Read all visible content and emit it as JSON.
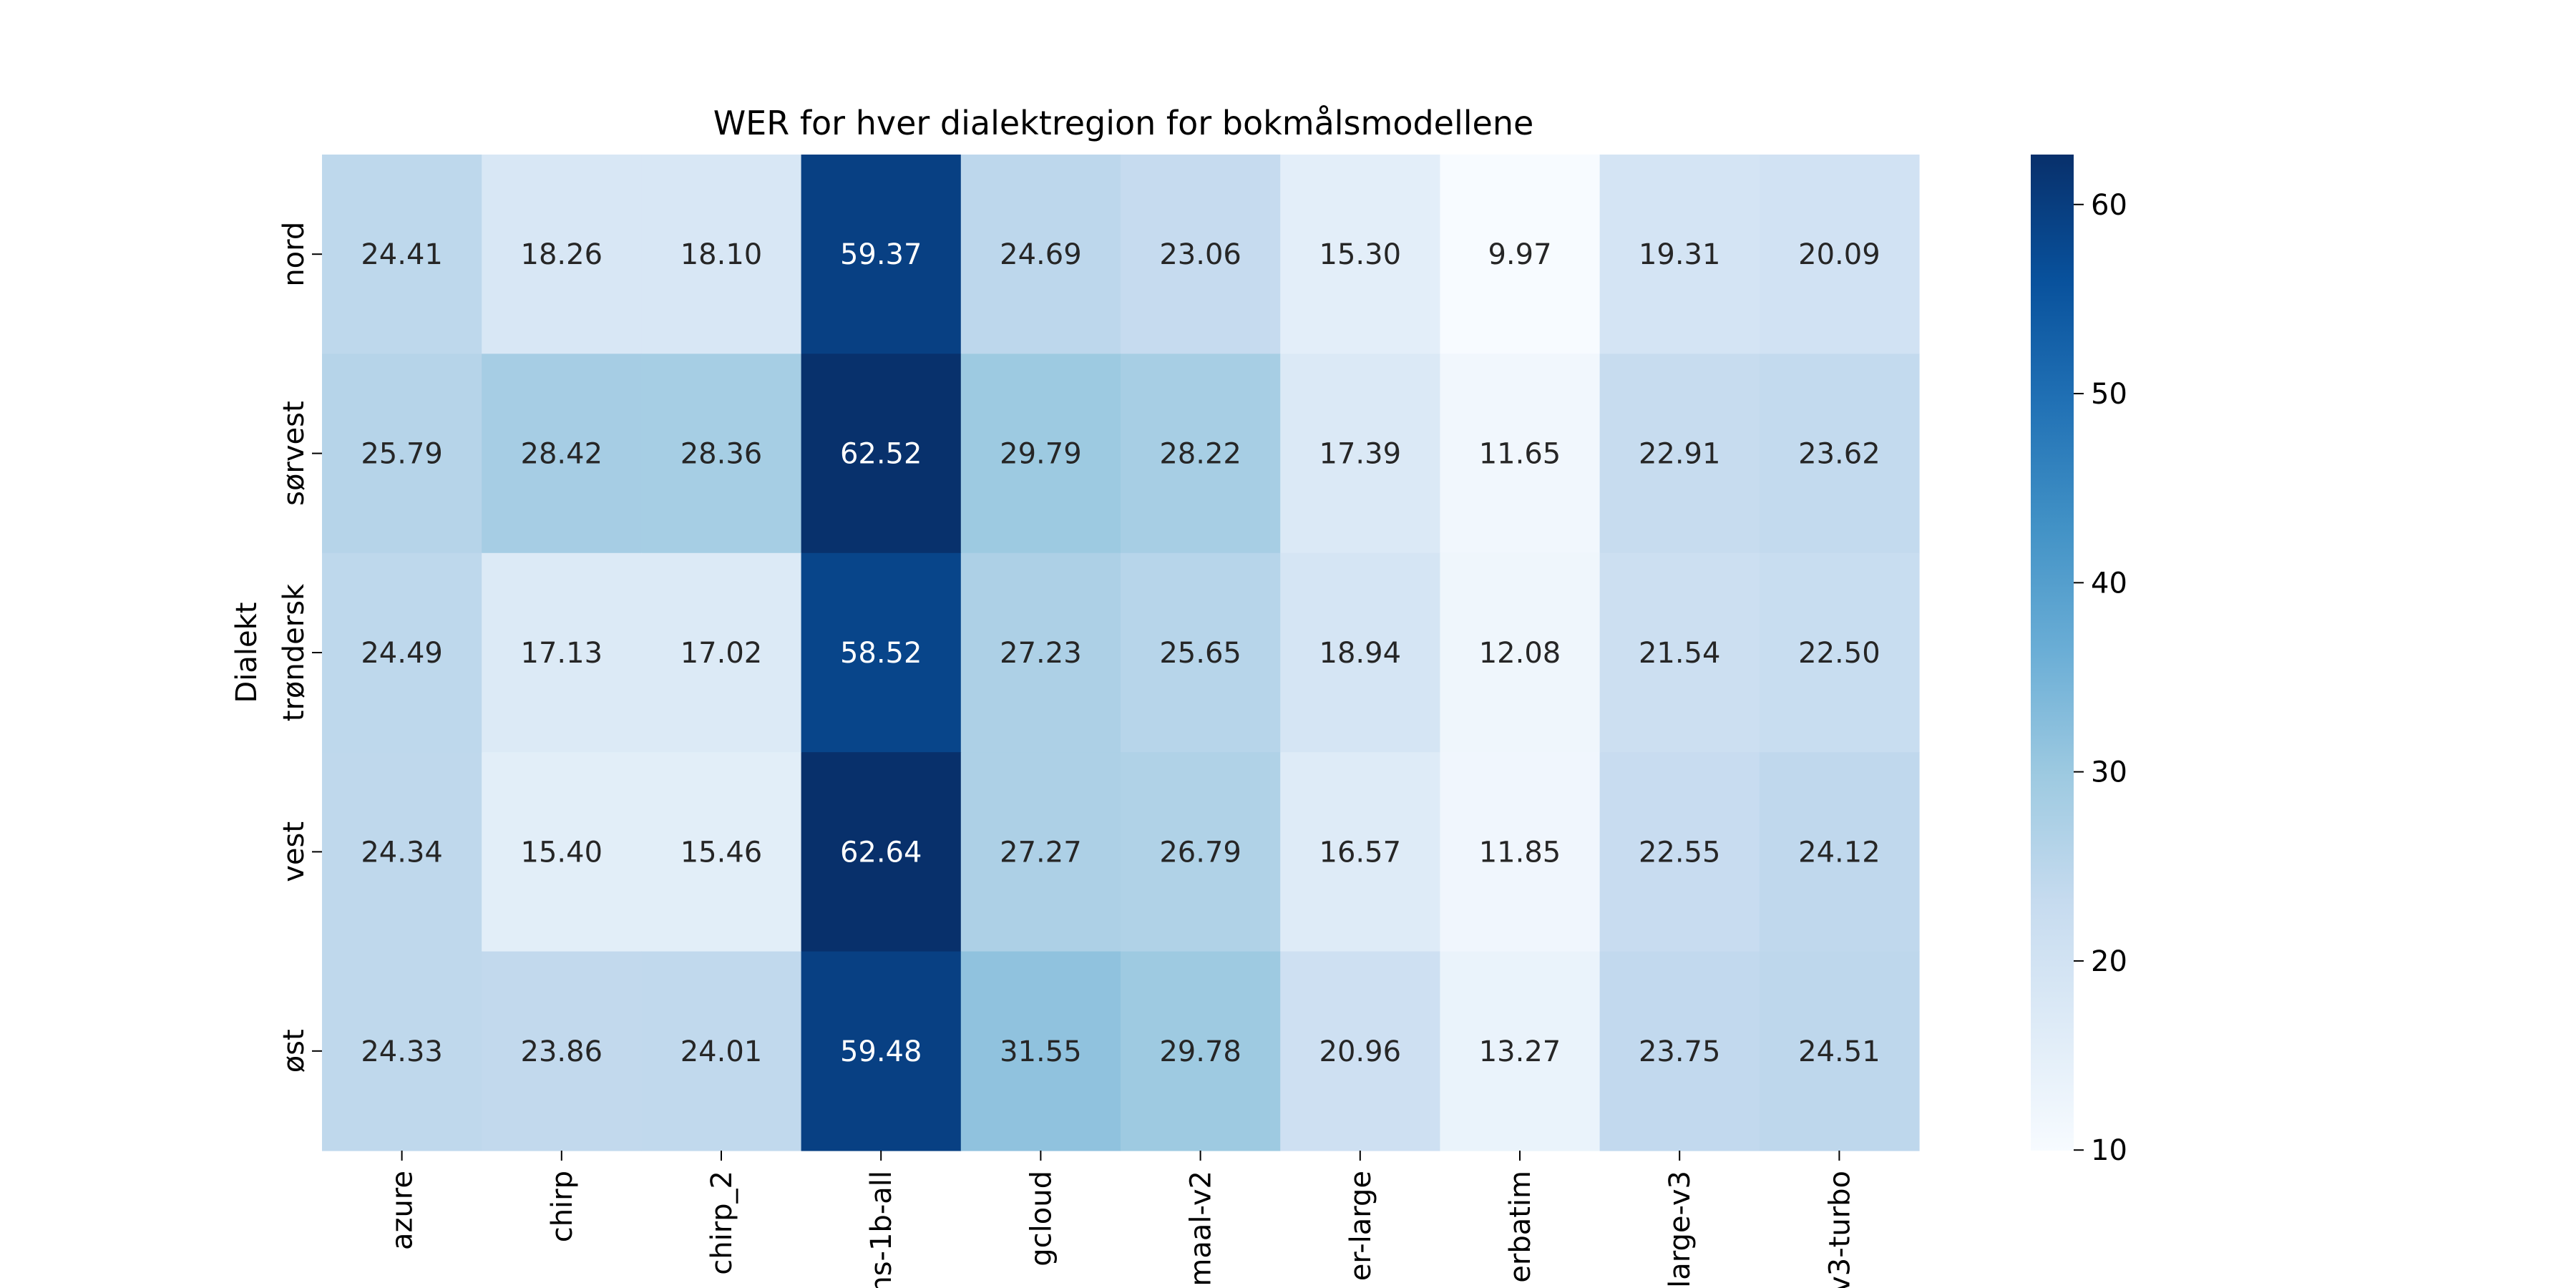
{
  "chart_data": {
    "type": "heatmap",
    "title": "WER for hver dialektregion for bokmålsmodellene",
    "ylabel": "Dialekt",
    "xlabel": "",
    "x_categories": [
      "azure",
      "chirp",
      "chirp_2",
      "ns-1b-all",
      "gcloud",
      "maal-v2",
      "er-large",
      "erbatim",
      "large-v3",
      "v3-turbo"
    ],
    "y_categories": [
      "nord",
      "sørvest",
      "trøndersk",
      "vest",
      "øst"
    ],
    "values": [
      [
        24.41,
        18.26,
        18.1,
        59.37,
        24.69,
        23.06,
        15.3,
        9.97,
        19.31,
        20.09
      ],
      [
        25.79,
        28.42,
        28.36,
        62.52,
        29.79,
        28.22,
        17.39,
        11.65,
        22.91,
        23.62
      ],
      [
        24.49,
        17.13,
        17.02,
        58.52,
        27.23,
        25.65,
        18.94,
        12.08,
        21.54,
        22.5
      ],
      [
        24.34,
        15.4,
        15.46,
        62.64,
        27.27,
        26.79,
        16.57,
        11.85,
        22.55,
        24.12
      ],
      [
        24.33,
        23.86,
        24.01,
        59.48,
        31.55,
        29.78,
        20.96,
        13.27,
        23.75,
        24.51
      ]
    ],
    "colormap": "Blues",
    "vmin": 9.97,
    "vmax": 62.64,
    "colorbar_ticks": [
      10,
      20,
      30,
      40,
      50,
      60
    ],
    "grid": false,
    "legend": "colorbar-right"
  }
}
